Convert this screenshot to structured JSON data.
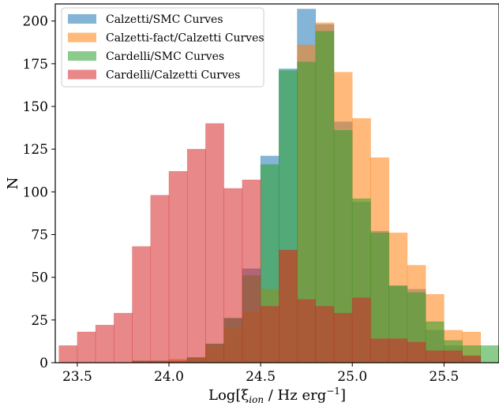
{
  "chart_data": {
    "type": "bar",
    "xlabel": "Log[ξ_ion / Hz erg^-1]",
    "ylabel": "N",
    "xlim": [
      23.38,
      25.8
    ],
    "ylim": [
      0,
      210
    ],
    "xticks": [
      23.5,
      24.0,
      24.5,
      25.0,
      25.5
    ],
    "yticks": [
      0,
      25,
      50,
      75,
      100,
      125,
      150,
      175,
      200
    ],
    "legend_position": "top-left",
    "bin_edges": [
      23.4,
      23.5,
      23.6,
      23.7,
      23.8,
      23.9,
      24.0,
      24.1,
      24.2,
      24.3,
      24.4,
      24.5,
      24.6,
      24.7,
      24.8,
      24.9,
      25.0,
      25.1,
      25.2,
      25.3,
      25.4,
      25.5,
      25.6,
      25.7,
      25.8
    ],
    "series": [
      {
        "name": "Calzetti/SMC Curves",
        "color": "#1f77b4",
        "values": [
          0,
          0,
          0,
          0,
          1,
          1,
          1,
          3,
          11,
          26,
          55,
          121,
          172,
          207,
          198,
          141,
          94,
          77,
          45,
          43,
          19,
          10,
          4,
          0
        ]
      },
      {
        "name": "Calzetti-fact/Calzetti Curves",
        "color": "#ff7f0e",
        "values": [
          0,
          0,
          0,
          0,
          1,
          1,
          2,
          3,
          10,
          20,
          30,
          43,
          65,
          186,
          199,
          170,
          143,
          120,
          76,
          57,
          40,
          19,
          18,
          0
        ]
      },
      {
        "name": "Cardelli/SMC Curves",
        "color": "#2ca02c",
        "values": [
          0,
          0,
          0,
          0,
          1,
          1,
          1,
          3,
          11,
          26,
          51,
          116,
          171,
          176,
          194,
          136,
          96,
          76,
          45,
          41,
          24,
          13,
          10,
          10
        ]
      },
      {
        "name": "Cardelli/Calzetti Curves",
        "color": "#d62728",
        "values": [
          10,
          18,
          22,
          29,
          68,
          98,
          112,
          125,
          140,
          102,
          107,
          33,
          66,
          37,
          33,
          29,
          38,
          14,
          14,
          12,
          7,
          7,
          4,
          0
        ]
      }
    ]
  }
}
